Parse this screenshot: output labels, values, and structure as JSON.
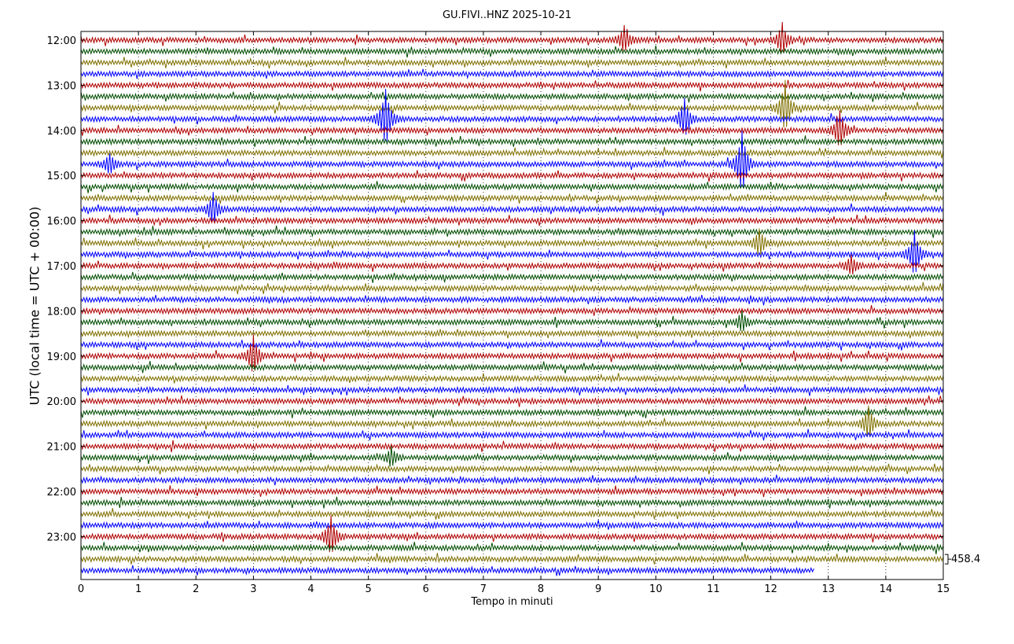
{
  "chart_data": {
    "type": "line",
    "title": "GU.FIVI..HNZ 2025-10-21",
    "xlabel": "Tempo in minuti",
    "ylabel": "UTC (local time = UTC + 00:00)",
    "xlim": [
      0,
      15
    ],
    "x_ticks": [
      "0",
      "1",
      "2",
      "3",
      "4",
      "5",
      "6",
      "7",
      "8",
      "9",
      "10",
      "11",
      "12",
      "13",
      "14",
      "15"
    ],
    "y_tick_labels": [
      "12:00",
      "13:00",
      "14:00",
      "15:00",
      "16:00",
      "17:00",
      "18:00",
      "19:00",
      "20:00",
      "21:00",
      "22:00",
      "23:00"
    ],
    "trace_start_times": [
      "12:00",
      "12:15",
      "12:30",
      "12:45",
      "13:00",
      "13:15",
      "13:30",
      "13:45",
      "14:00",
      "14:15",
      "14:30",
      "14:45",
      "15:00",
      "15:15",
      "15:30",
      "15:45",
      "16:00",
      "16:15",
      "16:30",
      "16:45",
      "17:00",
      "17:15",
      "17:30",
      "17:45",
      "18:00",
      "18:15",
      "18:30",
      "18:45",
      "19:00",
      "19:15",
      "19:30",
      "19:45",
      "20:00",
      "20:15",
      "20:30",
      "20:45",
      "21:00",
      "21:15",
      "21:30",
      "21:45",
      "22:00",
      "22:15",
      "22:30",
      "22:45",
      "23:00",
      "23:15",
      "23:30",
      "23:45"
    ],
    "trace_color_cycle": [
      "#b00000",
      "#004d00",
      "#807000",
      "#0000ff"
    ],
    "last_trace_end_minute": 12.75,
    "scale_label": "458.4",
    "grid": "vertical dotted at each minute",
    "events": [
      {
        "trace": "13:45",
        "minute": 5.3,
        "amp": 0.9
      },
      {
        "trace": "13:45",
        "minute": 10.5,
        "amp": 0.6
      },
      {
        "trace": "13:30",
        "minute": 12.25,
        "amp": 0.8
      },
      {
        "trace": "14:45",
        "minute": 11.5,
        "amp": 1.0
      },
      {
        "trace": "14:45",
        "minute": 0.5,
        "amp": 0.3
      },
      {
        "trace": "14:00",
        "minute": 13.2,
        "amp": 0.6
      },
      {
        "trace": "16:45",
        "minute": 14.5,
        "amp": 0.7
      },
      {
        "trace": "16:30",
        "minute": 11.8,
        "amp": 0.4
      },
      {
        "trace": "15:45",
        "minute": 2.3,
        "amp": 0.5
      },
      {
        "trace": "17:00",
        "minute": 13.4,
        "amp": 0.3
      },
      {
        "trace": "19:00",
        "minute": 3.0,
        "amp": 0.6
      },
      {
        "trace": "20:30",
        "minute": 13.7,
        "amp": 0.5
      },
      {
        "trace": "23:00",
        "minute": 4.35,
        "amp": 0.6
      },
      {
        "trace": "12:00",
        "minute": 12.2,
        "amp": 0.5
      },
      {
        "trace": "12:00",
        "minute": 9.45,
        "amp": 0.4
      },
      {
        "trace": "21:15",
        "minute": 5.4,
        "amp": 0.3
      },
      {
        "trace": "18:15",
        "minute": 11.5,
        "amp": 0.3
      }
    ]
  }
}
